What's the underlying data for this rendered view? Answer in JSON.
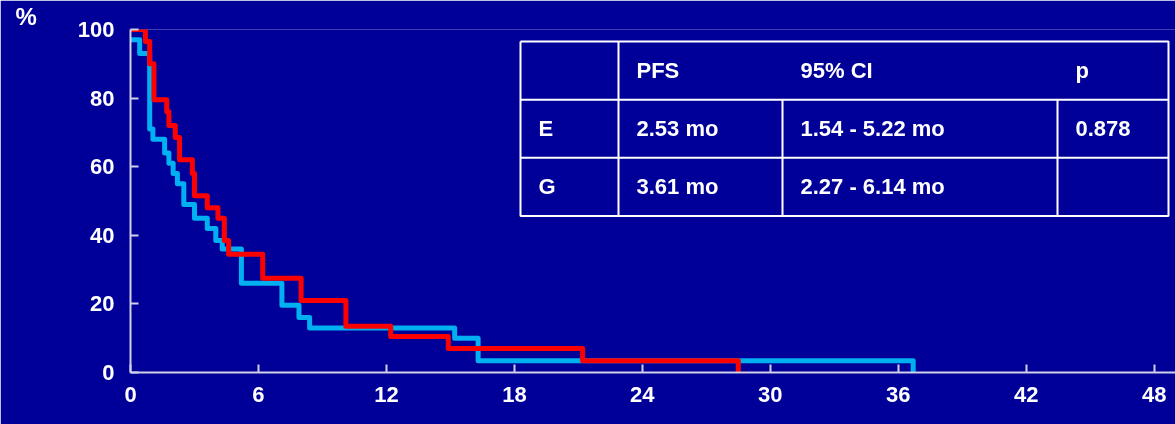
{
  "chart_data": {
    "type": "step",
    "ylabel": "%",
    "xlim": [
      0,
      49
    ],
    "ylim": [
      0,
      100
    ],
    "xticks": [
      0,
      6,
      12,
      18,
      24,
      30,
      36,
      42,
      48
    ],
    "yticks": [
      0,
      20,
      40,
      60,
      80,
      100
    ],
    "grid": false,
    "line_style": "solid",
    "marker": "none",
    "series": [
      {
        "color": "#00b0f0",
        "x": [
          0,
          0.43,
          0.9,
          1.05,
          1.6,
          1.8,
          2.0,
          2.2,
          2.5,
          3.0,
          3.6,
          4.0,
          4.3,
          5.2,
          7.1,
          7.9,
          8.4,
          15.2,
          16.3,
          36.7
        ],
        "values": [
          97,
          93,
          71,
          68,
          64,
          61,
          58,
          55,
          49,
          45,
          42,
          38.5,
          36,
          26,
          19.6,
          16,
          13,
          10,
          3.4,
          0
        ]
      },
      {
        "color": "#ff0000",
        "x": [
          0,
          0.7,
          0.9,
          1.1,
          1.7,
          1.8,
          2.1,
          2.3,
          2.9,
          3.0,
          3.6,
          4.1,
          4.4,
          4.6,
          6.2,
          8.0,
          10.1,
          12.2,
          14.9,
          21.2,
          28.5
        ],
        "values": [
          100,
          96.5,
          90,
          79.5,
          76,
          72,
          68.5,
          62,
          58,
          51.5,
          48,
          45,
          38.5,
          34.5,
          27.5,
          21,
          13.5,
          10.5,
          7,
          3.4,
          0
        ]
      }
    ],
    "annotations": [
      "PFS",
      "95% CI",
      "p",
      "E",
      "2.53 mo",
      "1.54 - 5.22 mo",
      "0.878",
      "G",
      "3.61 mo",
      "2.27 - 6.14 mo"
    ]
  }
}
